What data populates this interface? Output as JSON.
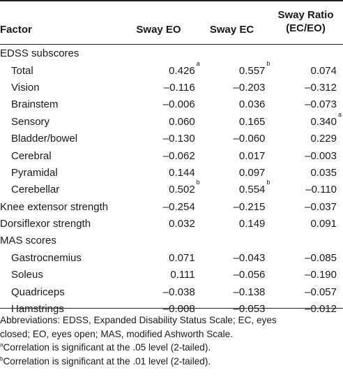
{
  "headers": {
    "factor": "Factor",
    "sway_eo": "Sway EO",
    "sway_ec": "Sway EC",
    "sway_ratio_line1": "Sway Ratio",
    "sway_ratio_line2": "(EC/EO)"
  },
  "rows": [
    {
      "factor": "EDSS subscores",
      "indent": false,
      "eo": "",
      "eo_sup": "",
      "ec": "",
      "ec_sup": "",
      "ratio": "",
      "ratio_sup": ""
    },
    {
      "factor": "Total",
      "indent": true,
      "eo": "0.426",
      "eo_sup": "a",
      "ec": "0.557",
      "ec_sup": "b",
      "ratio": "0.074",
      "ratio_sup": ""
    },
    {
      "factor": "Vision",
      "indent": true,
      "eo": "–0.116",
      "eo_sup": "",
      "ec": "–0.203",
      "ec_sup": "",
      "ratio": "–0.312",
      "ratio_sup": ""
    },
    {
      "factor": "Brainstem",
      "indent": true,
      "eo": "–0.006",
      "eo_sup": "",
      "ec": "0.036",
      "ec_sup": "",
      "ratio": "–0.073",
      "ratio_sup": ""
    },
    {
      "factor": "Sensory",
      "indent": true,
      "eo": "0.060",
      "eo_sup": "",
      "ec": "0.165",
      "ec_sup": "",
      "ratio": "0.340",
      "ratio_sup": "a"
    },
    {
      "factor": "Bladder/bowel",
      "indent": true,
      "eo": "–0.130",
      "eo_sup": "",
      "ec": "–0.060",
      "ec_sup": "",
      "ratio": "0.229",
      "ratio_sup": ""
    },
    {
      "factor": "Cerebral",
      "indent": true,
      "eo": "–0.062",
      "eo_sup": "",
      "ec": "0.017",
      "ec_sup": "",
      "ratio": "–0.003",
      "ratio_sup": ""
    },
    {
      "factor": "Pyramidal",
      "indent": true,
      "eo": "0.144",
      "eo_sup": "",
      "ec": "0.097",
      "ec_sup": "",
      "ratio": "0.035",
      "ratio_sup": ""
    },
    {
      "factor": "Cerebellar",
      "indent": true,
      "eo": "0.502",
      "eo_sup": "b",
      "ec": "0.554",
      "ec_sup": "b",
      "ratio": "–0.110",
      "ratio_sup": ""
    },
    {
      "factor": "Knee extensor strength",
      "indent": false,
      "eo": "–0.254",
      "eo_sup": "",
      "ec": "–0.215",
      "ec_sup": "",
      "ratio": "–0.037",
      "ratio_sup": ""
    },
    {
      "factor": "Dorsiflexor strength",
      "indent": false,
      "eo": "0.032",
      "eo_sup": "",
      "ec": "0.149",
      "ec_sup": "",
      "ratio": "0.091",
      "ratio_sup": ""
    },
    {
      "factor": "MAS scores",
      "indent": false,
      "eo": "",
      "eo_sup": "",
      "ec": "",
      "ec_sup": "",
      "ratio": "",
      "ratio_sup": ""
    },
    {
      "factor": "Gastrocnemius",
      "indent": true,
      "eo": "0.071",
      "eo_sup": "",
      "ec": "–0.043",
      "ec_sup": "",
      "ratio": "–0.085",
      "ratio_sup": ""
    },
    {
      "factor": "Soleus",
      "indent": true,
      "eo": "0.111",
      "eo_sup": "",
      "ec": "–0.056",
      "ec_sup": "",
      "ratio": "–0.190",
      "ratio_sup": ""
    },
    {
      "factor": "Quadriceps",
      "indent": true,
      "eo": "–0.038",
      "eo_sup": "",
      "ec": "–0.138",
      "ec_sup": "",
      "ratio": "–0.057",
      "ratio_sup": ""
    },
    {
      "factor": "Hamstrings",
      "indent": true,
      "eo": "–0.008",
      "eo_sup": "",
      "ec": "–0.053",
      "ec_sup": "",
      "ratio": "–0.012",
      "ratio_sup": ""
    }
  ],
  "footnotes": {
    "abbreviations_line1": "Abbreviations: EDSS, Expanded Disability Status Scale; EC, eyes",
    "abbreviations_line2": "closed; EO, eyes open; MAS, modified Ashworth Scale.",
    "note_a_marker": "a",
    "note_a": "Correlation is significant at the .05 level (2-tailed).",
    "note_b_marker": "b",
    "note_b": "Correlation is significant at the .01 level (2-tailed)."
  }
}
